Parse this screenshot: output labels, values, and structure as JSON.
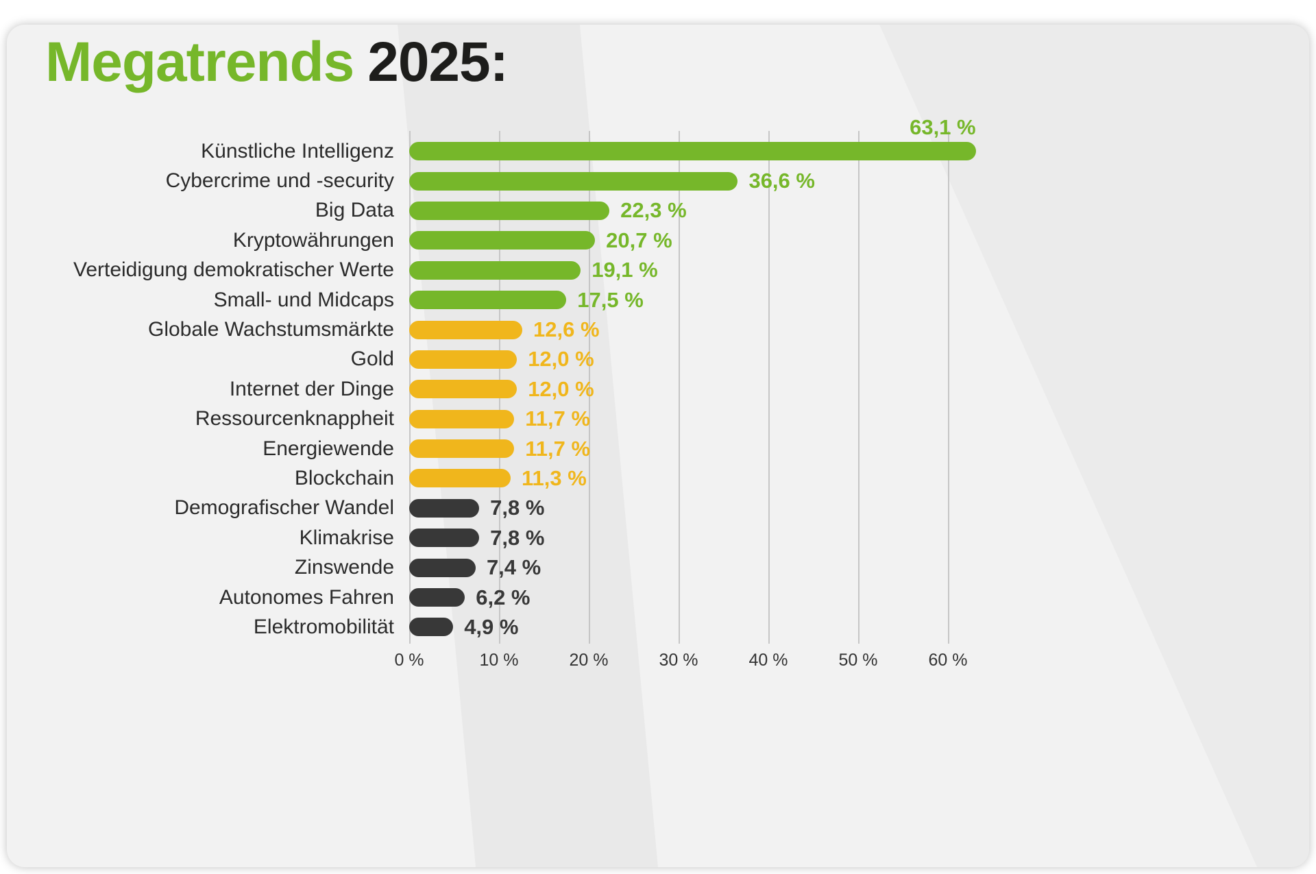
{
  "title": {
    "highlight": "Megatrends",
    "rest": "2025:"
  },
  "colors": {
    "green": "#76b72a",
    "yellow": "#f0b61c",
    "dark": "#383838"
  },
  "chart_data": {
    "type": "bar",
    "orientation": "horizontal",
    "title": "Megatrends 2025:",
    "categories": [
      "Künstliche Intelligenz",
      "Cybercrime und -security",
      "Big Data",
      "Kryptowährungen",
      "Verteidigung demokratischer Werte",
      "Small- und Midcaps",
      "Globale Wachstumsmärkte",
      "Gold",
      "Internet der Dinge",
      "Ressourcenknappheit",
      "Energiewende",
      "Blockchain",
      "Demografischer Wandel",
      "Klimakrise",
      "Zinswende",
      "Autonomes Fahren",
      "Elektromobilität"
    ],
    "values": [
      63.1,
      36.6,
      22.3,
      20.7,
      19.1,
      17.5,
      12.6,
      12.0,
      12.0,
      11.7,
      11.7,
      11.3,
      7.8,
      7.8,
      7.4,
      6.2,
      4.9
    ],
    "value_labels": [
      "63,1 %",
      "36,6 %",
      "22,3 %",
      "20,7 %",
      "19,1 %",
      "17,5 %",
      "12,6 %",
      "12,0 %",
      "12,0 %",
      "11,7 %",
      "11,7 %",
      "11,3 %",
      "7,8 %",
      "7,8 %",
      "7,4 %",
      "6,2 %",
      "4,9 %"
    ],
    "bar_colors": [
      "green",
      "green",
      "green",
      "green",
      "green",
      "green",
      "yellow",
      "yellow",
      "yellow",
      "yellow",
      "yellow",
      "yellow",
      "dark",
      "dark",
      "dark",
      "dark",
      "dark"
    ],
    "xlim": [
      0,
      65
    ],
    "x_ticks": [
      "0 %",
      "10 %",
      "20 %",
      "30 %",
      "40 %",
      "50 %",
      "60 %"
    ],
    "x_tick_values": [
      0,
      10,
      20,
      30,
      40,
      50,
      60
    ],
    "grid": true,
    "legend": false
  }
}
